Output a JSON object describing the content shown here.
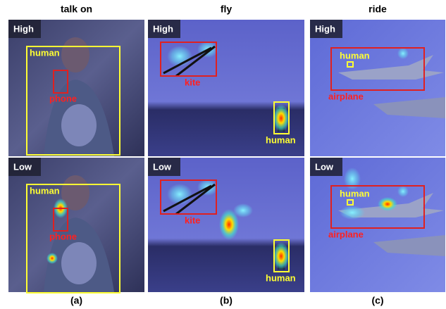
{
  "columns": [
    {
      "title": "talk on",
      "caption": "(a)",
      "panels": [
        {
          "tag": "High",
          "boxes": [
            {
              "label": "human"
            },
            {
              "label": "phone"
            }
          ]
        },
        {
          "tag": "Low",
          "boxes": [
            {
              "label": "human"
            },
            {
              "label": "phone"
            }
          ]
        }
      ]
    },
    {
      "title": "fly",
      "caption": "(b)",
      "panels": [
        {
          "tag": "High",
          "boxes": [
            {
              "label": "kite"
            },
            {
              "label": "human"
            }
          ]
        },
        {
          "tag": "Low",
          "boxes": [
            {
              "label": "kite"
            },
            {
              "label": "human"
            }
          ]
        }
      ]
    },
    {
      "title": "ride",
      "caption": "(c)",
      "panels": [
        {
          "tag": "High",
          "boxes": [
            {
              "label": "airplane"
            },
            {
              "label": "human"
            }
          ]
        },
        {
          "tag": "Low",
          "boxes": [
            {
              "label": "airplane"
            },
            {
              "label": "human"
            }
          ]
        }
      ]
    }
  ]
}
